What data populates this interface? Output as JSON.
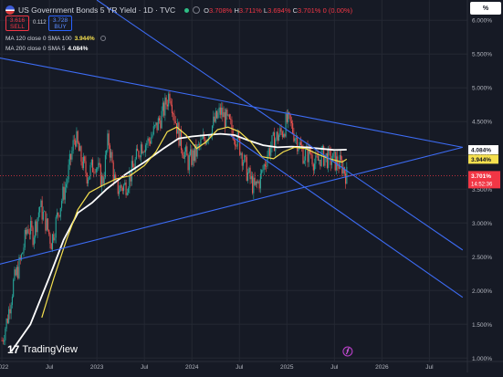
{
  "header": {
    "title": "US Government Bonds 5 YR Yield · 1D · TVC",
    "ohlc": {
      "o_label": "O",
      "o": "3.708%",
      "h_label": "H",
      "h": "3.711%",
      "l_label": "L",
      "l": "3.694%",
      "c_label": "C",
      "c": "3.701%",
      "change": "0 (0.00%)"
    },
    "sell_price": "3.616",
    "sell_label": "SELL",
    "spread": "0.112",
    "buy_price": "3.728",
    "buy_label": "BUY",
    "percent_button": "%"
  },
  "indicators": [
    {
      "label": "MA 120 close 0 SMA 100",
      "value": "3.944%",
      "color": "#f5e04e"
    },
    {
      "label": "MA 200 close 0 SMA 5",
      "value": "4.084%",
      "color": "#ffffff"
    }
  ],
  "logo": {
    "text": "TradingView",
    "mark": "17"
  },
  "colors": {
    "background": "#161a25",
    "up": "#26a69a",
    "down": "#ef5350",
    "ma120": "#f5e04e",
    "ma200": "#ffffff",
    "trendline": "#3d6cf5",
    "price_badge": "#f23645",
    "grid": "#242833"
  },
  "chart_data": {
    "type": "candlestick",
    "x_tick_labels": [
      "2022",
      "Jul",
      "2023",
      "Jul",
      "2024",
      "Jul",
      "2025",
      "Jul",
      "2026",
      "Jul"
    ],
    "x_tick_values": [
      2022.0,
      2022.5,
      2023.0,
      2023.5,
      2024.0,
      2024.5,
      2025.0,
      2025.5,
      2026.0,
      2026.5
    ],
    "ylim": [
      0.95,
      6.3
    ],
    "y_ticks": [
      {
        "value": 1.0,
        "label": "1.000%"
      },
      {
        "value": 1.5,
        "label": "1.500%"
      },
      {
        "value": 2.0,
        "label": "2.000%"
      },
      {
        "value": 2.5,
        "label": "2.500%"
      },
      {
        "value": 3.0,
        "label": "3.000%"
      },
      {
        "value": 3.5,
        "label": "3.500%"
      },
      {
        "value": 4.0,
        "label": "4.000%"
      },
      {
        "value": 4.5,
        "label": "4.500%"
      },
      {
        "value": 5.0,
        "label": "5.000%"
      },
      {
        "value": 5.5,
        "label": "5.500%"
      },
      {
        "value": 6.0,
        "label": "6.000%"
      }
    ],
    "price_path": [
      [
        2022.0,
        1.26
      ],
      [
        2022.06,
        1.6
      ],
      [
        2022.12,
        2.1
      ],
      [
        2022.2,
        2.45
      ],
      [
        2022.27,
        2.95
      ],
      [
        2022.33,
        2.82
      ],
      [
        2022.4,
        3.25
      ],
      [
        2022.46,
        3.02
      ],
      [
        2022.52,
        2.72
      ],
      [
        2022.6,
        3.2
      ],
      [
        2022.68,
        3.6
      ],
      [
        2022.77,
        4.3
      ],
      [
        2022.82,
        4.0
      ],
      [
        2022.9,
        3.7
      ],
      [
        2022.98,
        3.9
      ],
      [
        2023.06,
        3.6
      ],
      [
        2023.12,
        4.25
      ],
      [
        2023.2,
        3.5
      ],
      [
        2023.3,
        3.55
      ],
      [
        2023.38,
        3.8
      ],
      [
        2023.46,
        4.15
      ],
      [
        2023.54,
        4.2
      ],
      [
        2023.62,
        4.4
      ],
      [
        2023.7,
        4.65
      ],
      [
        2023.77,
        4.95
      ],
      [
        2023.82,
        4.55
      ],
      [
        2023.88,
        4.2
      ],
      [
        2023.96,
        3.9
      ],
      [
        2024.05,
        4.05
      ],
      [
        2024.13,
        4.25
      ],
      [
        2024.22,
        4.45
      ],
      [
        2024.3,
        4.65
      ],
      [
        2024.37,
        4.5
      ],
      [
        2024.44,
        4.35
      ],
      [
        2024.5,
        4.15
      ],
      [
        2024.58,
        3.75
      ],
      [
        2024.66,
        3.5
      ],
      [
        2024.72,
        3.65
      ],
      [
        2024.8,
        4.05
      ],
      [
        2024.88,
        4.25
      ],
      [
        2024.95,
        4.35
      ],
      [
        2025.0,
        4.5
      ],
      [
        2025.04,
        4.45
      ],
      [
        2025.1,
        4.25
      ],
      [
        2025.18,
        4.0
      ],
      [
        2025.25,
        4.05
      ],
      [
        2025.3,
        3.85
      ],
      [
        2025.36,
        4.0
      ],
      [
        2025.44,
        3.95
      ],
      [
        2025.52,
        3.9
      ],
      [
        2025.58,
        3.85
      ],
      [
        2025.63,
        3.7
      ]
    ],
    "series": [
      {
        "name": "MA 120 close 0 SMA 100",
        "values": [
          [
            2022.42,
            1.6
          ],
          [
            2022.55,
            2.2
          ],
          [
            2022.68,
            2.75
          ],
          [
            2022.8,
            3.2
          ],
          [
            2022.92,
            3.45
          ],
          [
            2023.05,
            3.55
          ],
          [
            2023.2,
            3.65
          ],
          [
            2023.35,
            3.7
          ],
          [
            2023.5,
            3.85
          ],
          [
            2023.62,
            4.05
          ],
          [
            2023.74,
            4.35
          ],
          [
            2023.84,
            4.42
          ],
          [
            2023.94,
            4.3
          ],
          [
            2024.05,
            4.1
          ],
          [
            2024.15,
            4.2
          ],
          [
            2024.27,
            4.38
          ],
          [
            2024.38,
            4.42
          ],
          [
            2024.5,
            4.35
          ],
          [
            2024.62,
            4.2
          ],
          [
            2024.74,
            3.98
          ],
          [
            2024.86,
            3.95
          ],
          [
            2024.96,
            4.05
          ],
          [
            2025.08,
            4.12
          ],
          [
            2025.2,
            4.1
          ],
          [
            2025.32,
            4.02
          ],
          [
            2025.45,
            3.95
          ],
          [
            2025.58,
            3.9
          ],
          [
            2025.63,
            3.944
          ]
        ]
      },
      {
        "name": "MA 200 close 0 SMA 5",
        "values": [
          [
            2022.1,
            1.1
          ],
          [
            2022.3,
            1.5
          ],
          [
            2022.5,
            2.2
          ],
          [
            2022.65,
            2.75
          ],
          [
            2022.8,
            3.15
          ],
          [
            2022.95,
            3.3
          ],
          [
            2023.1,
            3.5
          ],
          [
            2023.3,
            3.72
          ],
          [
            2023.5,
            3.9
          ],
          [
            2023.7,
            4.1
          ],
          [
            2023.86,
            4.25
          ],
          [
            2024.0,
            4.28
          ],
          [
            2024.15,
            4.3
          ],
          [
            2024.3,
            4.32
          ],
          [
            2024.45,
            4.3
          ],
          [
            2024.6,
            4.22
          ],
          [
            2024.75,
            4.15
          ],
          [
            2024.9,
            4.12
          ],
          [
            2025.05,
            4.13
          ],
          [
            2025.2,
            4.12
          ],
          [
            2025.35,
            4.1
          ],
          [
            2025.5,
            4.08
          ],
          [
            2025.63,
            4.084
          ]
        ]
      }
    ],
    "trendlines": [
      {
        "name": "",
        "from": [
          2021.95,
          5.45
        ],
        "to": [
          2026.85,
          4.12
        ]
      },
      {
        "name": "",
        "from": [
          2021.95,
          2.38
        ],
        "to": [
          2026.85,
          4.12
        ]
      },
      {
        "name": "",
        "from": [
          2023.0,
          6.3
        ],
        "to": [
          2026.85,
          2.6
        ]
      },
      {
        "name": "",
        "from": [
          2024.4,
          4.3
        ],
        "to": [
          2026.85,
          1.9
        ]
      }
    ],
    "last_price": {
      "value": 3.701,
      "label": "3.701%",
      "countdown": "14:52:36"
    },
    "value_labels": [
      {
        "value": 4.084,
        "label": "4.084%",
        "series": "MA 200 close 0 SMA 5"
      },
      {
        "value": 3.944,
        "label": "3.944%",
        "series": "MA 120 close 0 SMA 100"
      }
    ],
    "event_marker": {
      "x": 2025.64
    },
    "grid": true
  }
}
